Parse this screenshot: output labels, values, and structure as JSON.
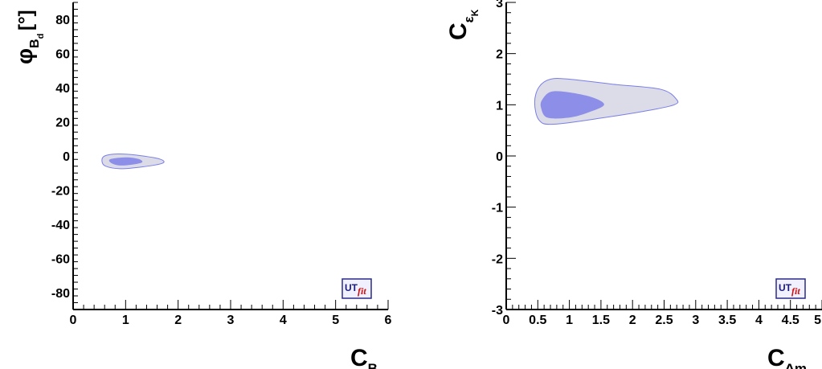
{
  "chart_data": [
    {
      "type": "contour",
      "xlabel": "C_B_d",
      "ylabel": "φ_B_d [°]",
      "xlim": [
        0,
        6
      ],
      "ylim": [
        -90,
        90
      ],
      "xticks": [
        "0",
        "1",
        "2",
        "3",
        "4",
        "5",
        "6"
      ],
      "yticks": [
        "-80",
        "-60",
        "-40",
        "-20",
        "0",
        "20",
        "40",
        "60",
        "80"
      ],
      "regions": [
        {
          "level": "outer",
          "color": "#dcdce8",
          "edge": "#7b7ee6",
          "points": [
            [
              0.55,
              -3
            ],
            [
              0.62,
              -6
            ],
            [
              0.9,
              -7.5
            ],
            [
              1.3,
              -6.5
            ],
            [
              1.7,
              -4.3
            ],
            [
              1.65,
              -1.8
            ],
            [
              1.2,
              0.5
            ],
            [
              0.85,
              1.2
            ],
            [
              0.6,
              0
            ]
          ]
        },
        {
          "level": "inner",
          "color": "#8c8ee8",
          "points": [
            [
              0.7,
              -2
            ],
            [
              0.75,
              -4.5
            ],
            [
              0.95,
              -5.6
            ],
            [
              1.3,
              -4
            ],
            [
              1.25,
              -1.8
            ],
            [
              1.0,
              -0.8
            ]
          ]
        }
      ],
      "logo": {
        "text1": "UT",
        "text2": "fit"
      }
    },
    {
      "type": "contour",
      "xlabel": "C_Δm_K",
      "ylabel": "C_ε_K",
      "xlim": [
        0,
        5
      ],
      "ylim": [
        -3,
        3
      ],
      "xticks": [
        "0",
        "0.5",
        "1",
        "1.5",
        "2",
        "2.5",
        "3",
        "3.5",
        "4",
        "4.5",
        "5"
      ],
      "yticks": [
        "-3",
        "-2",
        "-1",
        "0",
        "1",
        "2",
        "3"
      ],
      "regions": [
        {
          "level": "outer",
          "color": "#dcdce8",
          "edge": "#7b7ee6",
          "points": [
            [
              0.45,
              1.05
            ],
            [
              0.52,
              0.7
            ],
            [
              0.75,
              0.62
            ],
            [
              1.5,
              0.74
            ],
            [
              2.3,
              0.9
            ],
            [
              2.66,
              1.0
            ],
            [
              2.7,
              1.1
            ],
            [
              2.45,
              1.3
            ],
            [
              1.7,
              1.4
            ],
            [
              1.0,
              1.5
            ],
            [
              0.7,
              1.5
            ],
            [
              0.52,
              1.35
            ]
          ]
        },
        {
          "level": "inner",
          "color": "#8c8ee8",
          "points": [
            [
              0.55,
              0.95
            ],
            [
              0.65,
              0.75
            ],
            [
              1.0,
              0.75
            ],
            [
              1.3,
              0.85
            ],
            [
              1.55,
              1.0
            ],
            [
              1.35,
              1.15
            ],
            [
              0.95,
              1.25
            ],
            [
              0.7,
              1.25
            ],
            [
              0.57,
              1.1
            ]
          ]
        }
      ],
      "logo": {
        "text1": "UT",
        "text2": "fit"
      }
    }
  ]
}
